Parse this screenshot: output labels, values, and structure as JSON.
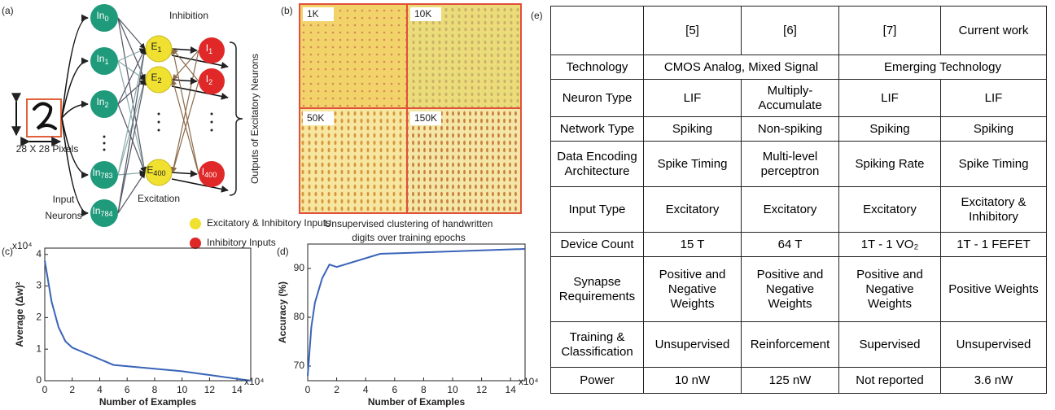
{
  "panel_a": {
    "label": "(a)",
    "inhibition": "Inhibition",
    "excitation": "Excitation",
    "input_caption": [
      "Input",
      "Neurons"
    ],
    "pixels": "28 X 28 Pixels",
    "outputs": "Outputs of Excitatory Neurons",
    "input_neurons": [
      {
        "text": "In",
        "sub": "0"
      },
      {
        "text": "In",
        "sub": "1"
      },
      {
        "text": "In",
        "sub": "2"
      },
      {
        "text": "In",
        "sub": "783"
      },
      {
        "text": "In",
        "sub": "784"
      }
    ],
    "excitatory_neurons": [
      {
        "text": "E",
        "sub": "1"
      },
      {
        "text": "E",
        "sub": "2"
      },
      {
        "text": "E",
        "sub": "400"
      }
    ],
    "inhibitory_neurons": [
      {
        "text": "I",
        "sub": "1"
      },
      {
        "text": "I",
        "sub": "2"
      },
      {
        "text": "I",
        "sub": "400"
      }
    ],
    "legend": [
      "Excitatory & Inhibitory Inputs",
      "Inhibitory Inputs"
    ]
  },
  "panel_b": {
    "label": "(b)",
    "tiles": [
      "1K",
      "10K",
      "50K",
      "150K"
    ],
    "caption": [
      "Unsupervised clustering of handwritten",
      "digits over training epochs"
    ]
  },
  "chart_data": [
    {
      "type": "line",
      "panel_label": "(c)",
      "y_label": "Average (Δw)²",
      "y_multiplier": "x10⁴",
      "x_label": "Number of Examples",
      "x_multiplier": "x10⁴",
      "x": [
        0,
        0.5,
        1,
        1.5,
        2,
        5,
        10,
        15
      ],
      "series": [
        {
          "color": "#3a64b8",
          "values": [
            3.8,
            2.5,
            1.7,
            1.25,
            1.05,
            0.5,
            0.3,
            0
          ]
        }
      ],
      "xlim": [
        0,
        15
      ],
      "ylim": [
        0,
        4.2
      ],
      "xticks": [
        0,
        2,
        4,
        6,
        8,
        10,
        12,
        14
      ],
      "yticks": [
        0,
        1,
        2,
        3,
        4
      ]
    },
    {
      "type": "line",
      "panel_label": "(d)",
      "y_label": "Accuracy (%)",
      "x_label": "Number of Examples",
      "x_multiplier": "x10⁴",
      "x": [
        0,
        0.25,
        0.5,
        1,
        1.5,
        2,
        5,
        15
      ],
      "series": [
        {
          "color": "#3a64b8",
          "values": [
            68,
            78,
            83,
            88,
            90.8,
            90.3,
            93,
            94
          ]
        }
      ],
      "xlim": [
        0,
        15
      ],
      "ylim": [
        67,
        95
      ],
      "xticks": [
        0,
        2,
        4,
        6,
        8,
        10,
        12,
        14
      ],
      "yticks": [
        70,
        80,
        90
      ]
    }
  ],
  "panel_e": {
    "label": "(e)",
    "table": {
      "columns": [
        "[5]",
        "[6]",
        "[7]",
        "Current work"
      ],
      "rows": [
        {
          "label": "Technology",
          "cells": [
            "CMOS Analog, Mixed Signal",
            "Emerging Technology"
          ]
        },
        {
          "label": "Neuron Type",
          "cells": [
            "LIF",
            "Multiply-Accumulate",
            "LIF",
            "LIF"
          ]
        },
        {
          "label": "Network Type",
          "cells": [
            "Spiking",
            "Non-spiking",
            "Spiking",
            "Spiking"
          ]
        },
        {
          "label": "Data Encoding Architecture",
          "cells": [
            "Spike Timing",
            "Multi-level perceptron",
            "Spiking Rate",
            "Spike Timing"
          ]
        },
        {
          "label": "Input Type",
          "cells": [
            "Excitatory",
            "Excitatory",
            "Excitatory",
            "Excitatory & Inhibitory"
          ]
        },
        {
          "label": "Device Count",
          "cells": [
            "15 T",
            "64 T",
            "1T - 1 VO₂",
            "1T - 1 FEFET"
          ]
        },
        {
          "label": "Synapse Requirements",
          "cells": [
            "Positive and Negative Weights",
            "Positive and Negative Weights",
            "Positive and Negative Weights",
            "Positive Weights"
          ]
        },
        {
          "label": "Training & Classification",
          "cells": [
            "Unsupervised",
            "Reinforcement",
            "Supervised",
            "Unsupervised"
          ]
        },
        {
          "label": "Power",
          "cells": [
            "10 nW",
            "125 nW",
            "Not reported",
            "3.6 nW"
          ]
        }
      ]
    }
  }
}
